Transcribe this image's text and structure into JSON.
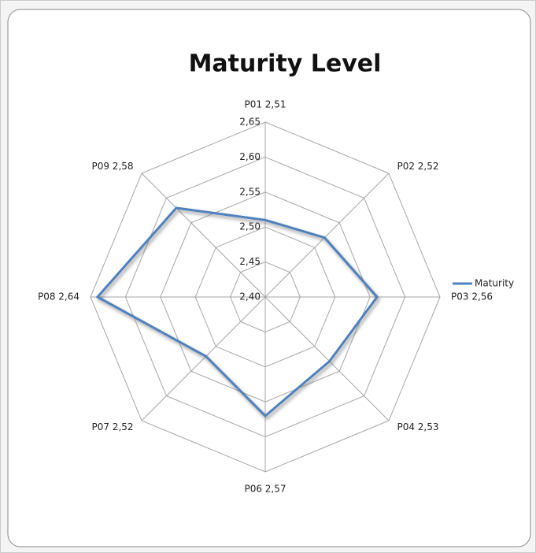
{
  "chart_data": {
    "type": "radar",
    "title": "Maturity Level",
    "categories": [
      "P01 2,51",
      "P02 2,52",
      "P03 2,56",
      "P04 2,53",
      "P06 2,57",
      "P07 2,52",
      "P08 2,64",
      "P09 2,58"
    ],
    "series": [
      {
        "name": "Maturity",
        "color": "#4f81bd",
        "values": [
          2.51,
          2.52,
          2.56,
          2.53,
          2.57,
          2.52,
          2.64,
          2.58
        ]
      }
    ],
    "ylim": [
      2.4,
      2.65
    ],
    "yticks": [
      {
        "value": 2.4,
        "label": "2,40"
      },
      {
        "value": 2.45,
        "label": "2,45"
      },
      {
        "value": 2.5,
        "label": "2,50"
      },
      {
        "value": 2.55,
        "label": "2,55"
      },
      {
        "value": 2.6,
        "label": "2,60"
      },
      {
        "value": 2.65,
        "label": "2,65"
      }
    ],
    "grid": true,
    "legend": "right"
  }
}
